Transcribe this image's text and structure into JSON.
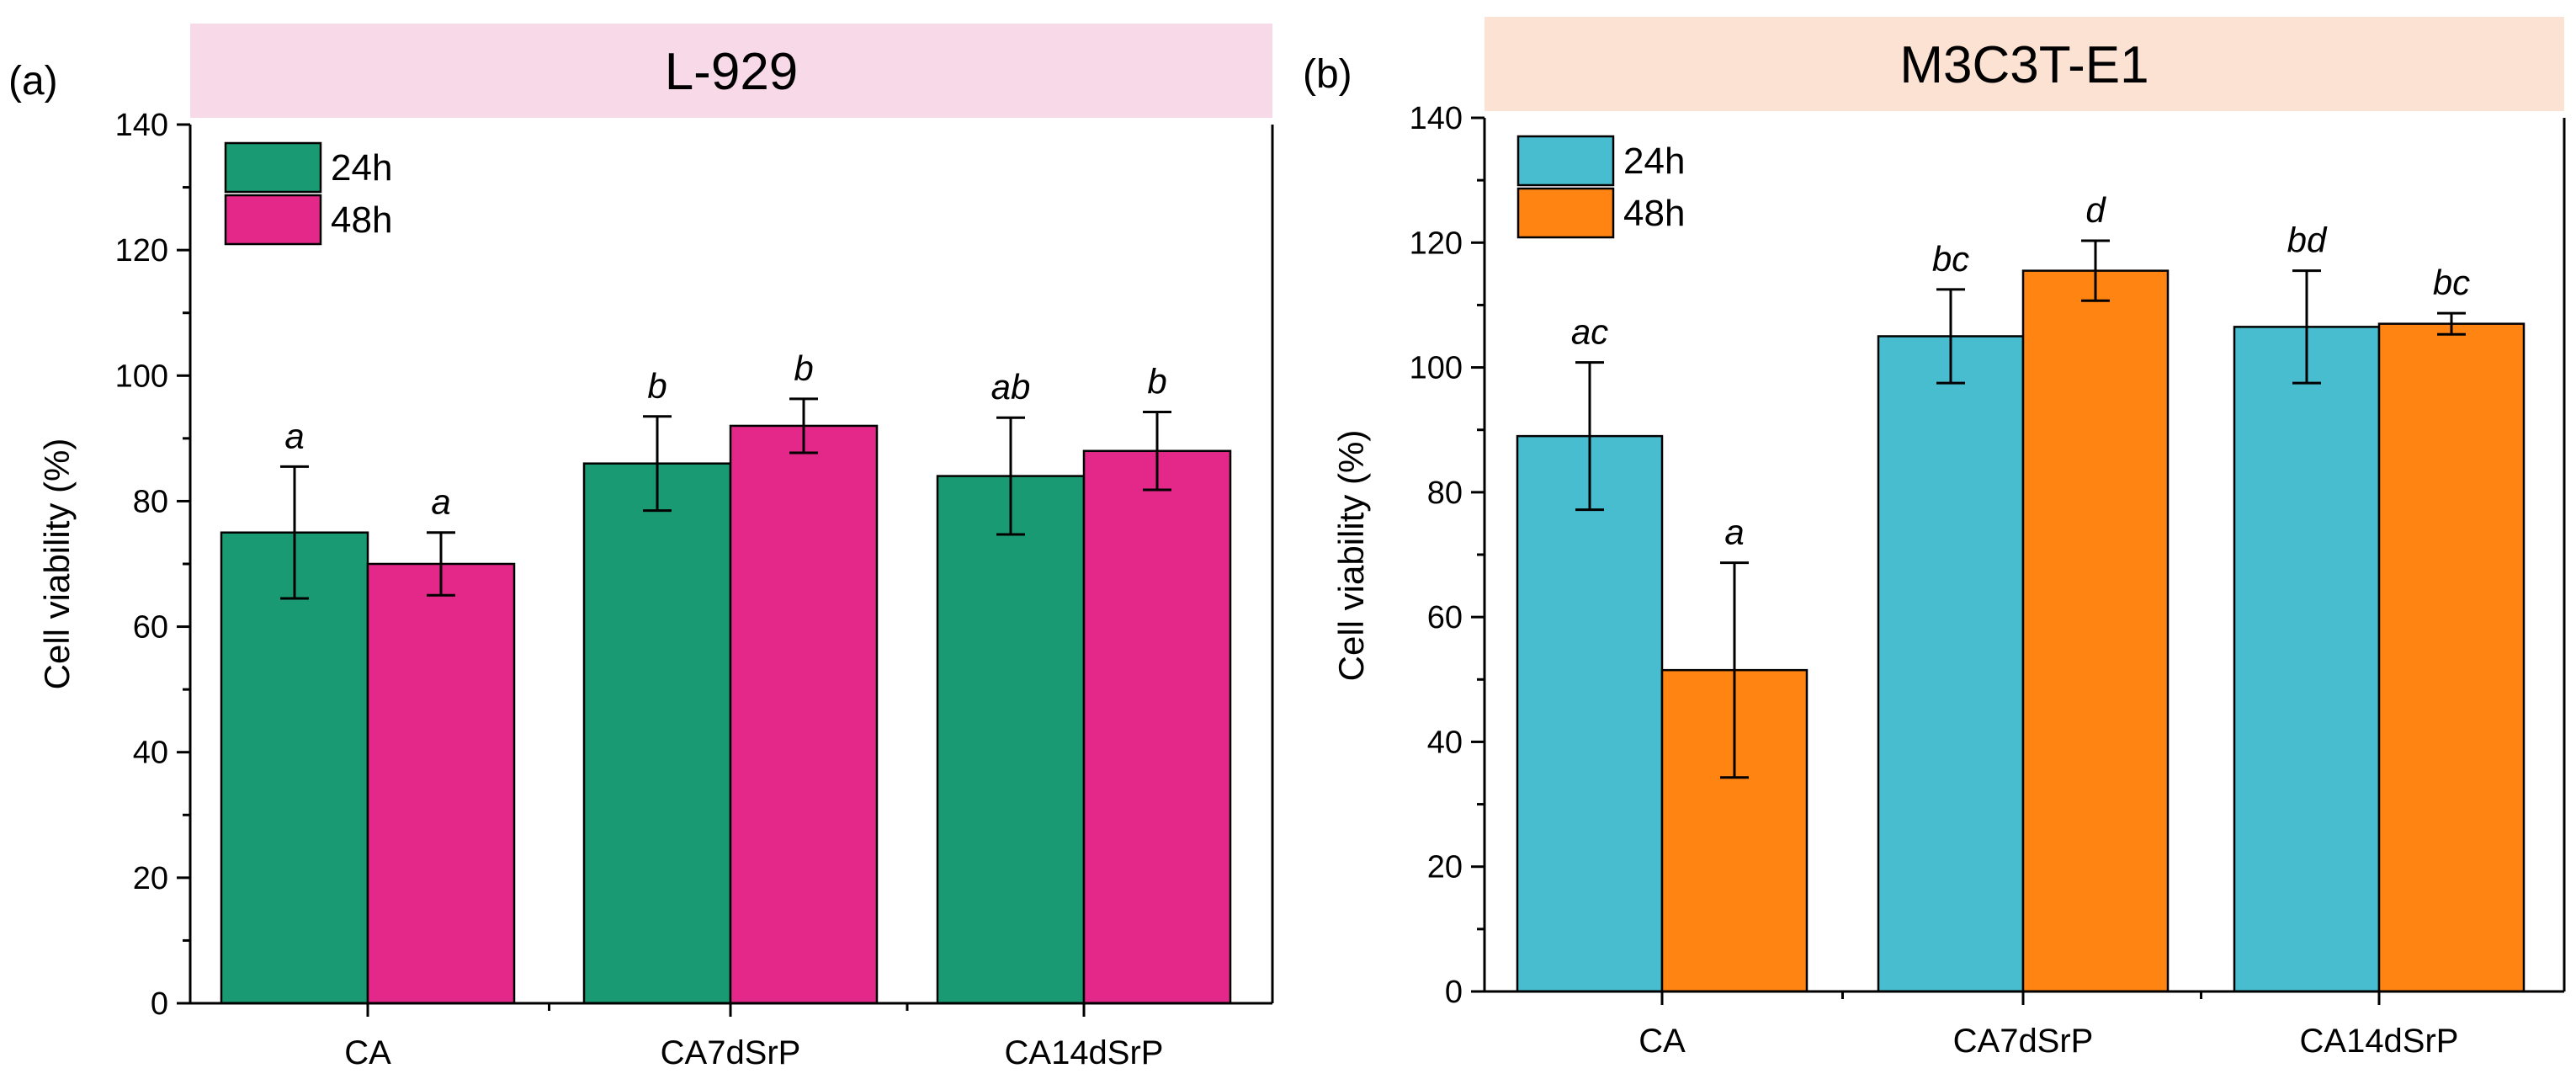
{
  "chart_data": [
    {
      "type": "bar",
      "panel_label": "(a)",
      "title": "L-929",
      "title_bg": "#f8d9e8",
      "xlabel": "",
      "ylabel": "Cell viability (%)",
      "ylim": [
        0,
        140
      ],
      "yticks": [
        0,
        20,
        40,
        60,
        80,
        100,
        120,
        140
      ],
      "categories": [
        "CA",
        "CA7dSrP",
        "CA14dSrP"
      ],
      "legend_position": "top-left",
      "series": [
        {
          "name": "24h",
          "color": "#1a9a72",
          "values": [
            75,
            86,
            84
          ],
          "errors": [
            10.5,
            7.5,
            9.3
          ],
          "labels": [
            "a",
            "b",
            "ab"
          ]
        },
        {
          "name": "48h",
          "color": "#e3288a",
          "values": [
            70,
            92,
            88
          ],
          "errors": [
            5,
            4.3,
            6.2
          ],
          "labels": [
            "a",
            "b",
            "b"
          ]
        }
      ]
    },
    {
      "type": "bar",
      "panel_label": "(b)",
      "title": "M3C3T-E1",
      "title_bg": "#fbe2d2",
      "xlabel": "",
      "ylabel": "Cell viability (%)",
      "ylim": [
        0,
        140
      ],
      "yticks": [
        0,
        20,
        40,
        60,
        80,
        100,
        120,
        140
      ],
      "categories": [
        "CA",
        "CA7dSrP",
        "CA14dSrP"
      ],
      "legend_position": "top-left",
      "series": [
        {
          "name": "24h",
          "color": "#49bdd0",
          "values": [
            89,
            105,
            106.5
          ],
          "errors": [
            11.8,
            7.5,
            9
          ],
          "labels": [
            "ac",
            "bc",
            "bd"
          ]
        },
        {
          "name": "48h",
          "color": "#ff8412",
          "values": [
            51.5,
            115.5,
            107
          ],
          "errors": [
            17.2,
            4.8,
            1.7
          ],
          "labels": [
            "a",
            "d",
            "bc"
          ]
        }
      ]
    }
  ]
}
